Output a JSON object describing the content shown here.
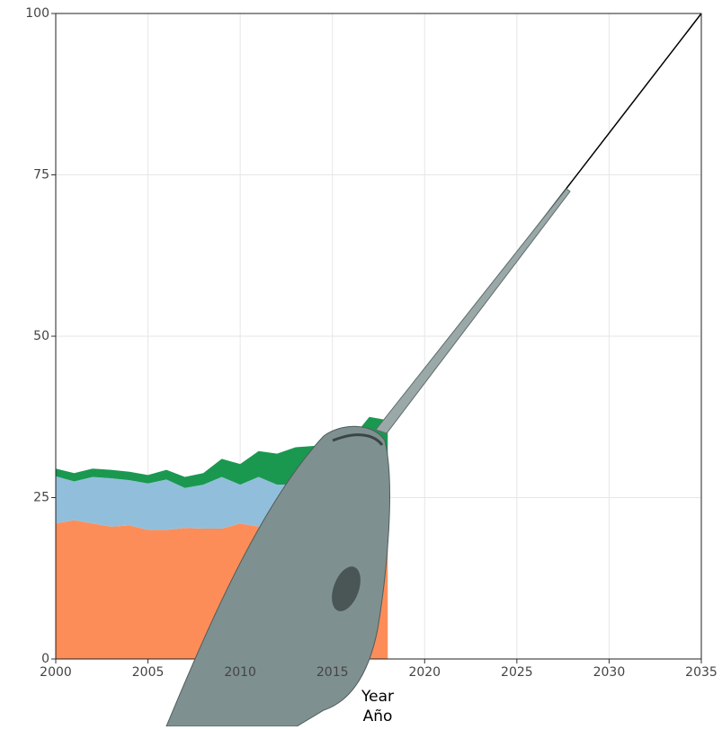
{
  "chart_data": {
    "type": "stacked_area",
    "x_label": "Year",
    "x_label_2": "Año",
    "x": [
      2000,
      2001,
      2002,
      2003,
      2004,
      2005,
      2006,
      2007,
      2008,
      2009,
      2010,
      2011,
      2012,
      2013,
      2014,
      2015,
      2016,
      2017,
      2018
    ],
    "series": [
      {
        "color": "#fc8d59",
        "values": [
          21,
          21.5,
          21,
          20.5,
          20.7,
          20,
          20,
          20.3,
          20.2,
          20.2,
          21,
          20.5,
          20,
          20,
          20,
          20,
          20,
          20,
          20
        ]
      },
      {
        "color": "#91bfdb",
        "values": [
          7.3,
          6,
          7.2,
          7.5,
          7,
          7.2,
          7.8,
          6.2,
          6.8,
          8,
          6,
          7.7,
          7,
          7,
          7.5,
          7.5,
          7.5,
          7.5,
          7.5
        ]
      },
      {
        "color": "#1a9850",
        "values": [
          1.2,
          1.3,
          1.3,
          1.3,
          1.3,
          1.3,
          1.5,
          1.7,
          1.8,
          2.8,
          3.2,
          4,
          4.8,
          5.8,
          5.5,
          5.8,
          6.5,
          10,
          9.5
        ]
      }
    ],
    "line": {
      "color": "#000000",
      "x": [
        2018,
        2035
      ],
      "values": [
        37,
        100
      ]
    },
    "xlim": [
      2000,
      2035
    ],
    "xticks": [
      2000,
      2005,
      2010,
      2015,
      2020,
      2025,
      2030,
      2035
    ],
    "ylim": [
      0,
      100
    ],
    "yticks": [
      0,
      25,
      50,
      75,
      100
    ],
    "grid": true
  }
}
